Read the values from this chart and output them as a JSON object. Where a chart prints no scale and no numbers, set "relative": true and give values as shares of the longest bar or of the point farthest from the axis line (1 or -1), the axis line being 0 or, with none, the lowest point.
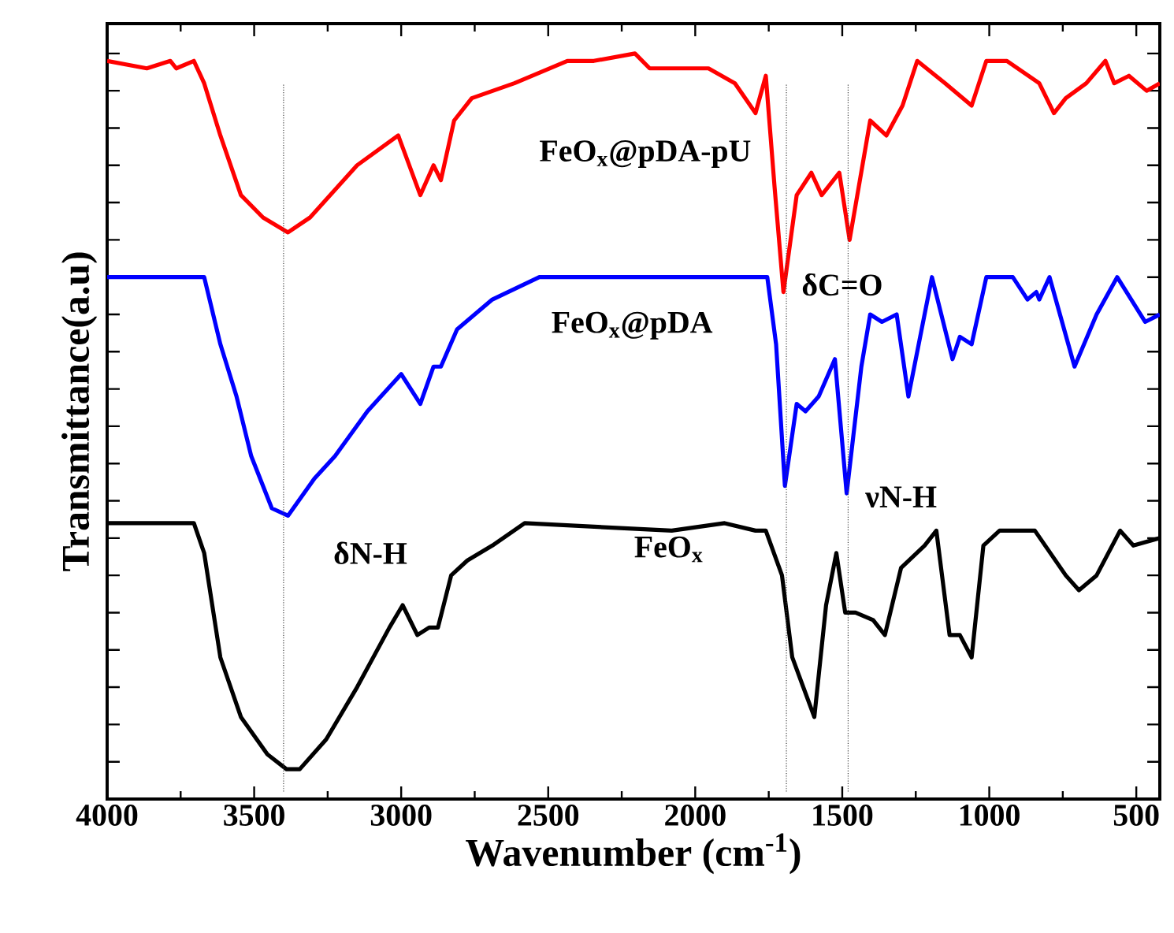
{
  "chart_data": {
    "type": "line",
    "relative": true,
    "xlabel": "Wavenumber (cm$^{-1}$)",
    "ylabel": "Transmittance(a.u)",
    "xlim": [
      4000,
      420
    ],
    "xticks": [
      4000,
      3500,
      3000,
      2500,
      2000,
      1500,
      1000,
      500
    ],
    "tick_labels": "x",
    "grid": false,
    "marker": "none",
    "line_style": "solid",
    "series": [
      {
        "name": "FeO$_{x}$@pDA-pU",
        "color": "#ff0000",
        "x": [
          4000,
          3865,
          3785,
          3765,
          3705,
          3670,
          3615,
          3545,
          3470,
          3385,
          3310,
          3150,
          3010,
          2935,
          2890,
          2865,
          2820,
          2760,
          2615,
          2435,
          2345,
          2205,
          2155,
          1955,
          1865,
          1795,
          1760,
          1730,
          1700,
          1655,
          1605,
          1570,
          1510,
          1475,
          1405,
          1350,
          1295,
          1245,
          1150,
          1060,
          1010,
          940,
          830,
          780,
          740,
          670,
          605,
          575,
          525,
          465,
          420
        ],
        "values": [
          0.99,
          0.98,
          0.99,
          0.98,
          0.99,
          0.96,
          0.89,
          0.81,
          0.78,
          0.76,
          0.78,
          0.85,
          0.89,
          0.81,
          0.85,
          0.83,
          0.91,
          0.94,
          0.96,
          0.99,
          0.99,
          1.0,
          0.98,
          0.98,
          0.96,
          0.92,
          0.97,
          0.82,
          0.68,
          0.81,
          0.84,
          0.81,
          0.84,
          0.75,
          0.91,
          0.89,
          0.93,
          0.99,
          0.96,
          0.93,
          0.99,
          0.99,
          0.96,
          0.92,
          0.94,
          0.96,
          0.99,
          0.96,
          0.97,
          0.95,
          0.96
        ]
      },
      {
        "name": "FeO$_{x}$@pDA",
        "color": "#0000ff",
        "x": [
          4000,
          3670,
          3615,
          3560,
          3510,
          3440,
          3385,
          3295,
          3225,
          3115,
          3000,
          2935,
          2890,
          2865,
          2810,
          2690,
          2530,
          1780,
          1755,
          1725,
          1695,
          1655,
          1625,
          1580,
          1525,
          1485,
          1435,
          1405,
          1365,
          1315,
          1275,
          1195,
          1125,
          1100,
          1060,
          1010,
          920,
          870,
          840,
          830,
          795,
          710,
          635,
          565,
          470,
          420
        ],
        "values": [
          0.7,
          0.7,
          0.61,
          0.54,
          0.46,
          0.39,
          0.38,
          0.43,
          0.46,
          0.52,
          0.57,
          0.53,
          0.58,
          0.58,
          0.63,
          0.67,
          0.7,
          0.7,
          0.7,
          0.61,
          0.42,
          0.53,
          0.52,
          0.54,
          0.59,
          0.41,
          0.58,
          0.65,
          0.64,
          0.65,
          0.54,
          0.7,
          0.59,
          0.62,
          0.61,
          0.7,
          0.7,
          0.67,
          0.68,
          0.67,
          0.7,
          0.58,
          0.65,
          0.7,
          0.64,
          0.65
        ]
      },
      {
        "name": "FeO$_{x}$",
        "color": "#000000",
        "x": [
          4000,
          3705,
          3670,
          3615,
          3545,
          3455,
          3390,
          3345,
          3255,
          3150,
          3040,
          2995,
          2945,
          2905,
          2875,
          2830,
          2775,
          2690,
          2580,
          2080,
          1900,
          1795,
          1760,
          1705,
          1670,
          1595,
          1555,
          1520,
          1490,
          1455,
          1395,
          1355,
          1300,
          1220,
          1180,
          1135,
          1100,
          1060,
          1020,
          965,
          845,
          740,
          695,
          635,
          555,
          510,
          420
        ],
        "values": [
          0.37,
          0.37,
          0.33,
          0.19,
          0.11,
          0.06,
          0.04,
          0.04,
          0.08,
          0.15,
          0.23,
          0.26,
          0.22,
          0.23,
          0.23,
          0.3,
          0.32,
          0.34,
          0.37,
          0.36,
          0.37,
          0.36,
          0.36,
          0.3,
          0.19,
          0.11,
          0.26,
          0.33,
          0.25,
          0.25,
          0.24,
          0.22,
          0.31,
          0.34,
          0.36,
          0.22,
          0.22,
          0.19,
          0.34,
          0.36,
          0.36,
          0.3,
          0.28,
          0.3,
          0.36,
          0.34,
          0.35
        ]
      }
    ],
    "ref_lines": [
      {
        "axis": "x",
        "value": 3400,
        "line_style": "dotted"
      },
      {
        "axis": "x",
        "value": 1690,
        "line_style": "dotted"
      },
      {
        "axis": "x",
        "value": 1480,
        "line_style": "dotted"
      }
    ],
    "annotations": [
      "δN-H",
      "δC=O",
      "νN-H"
    ]
  }
}
